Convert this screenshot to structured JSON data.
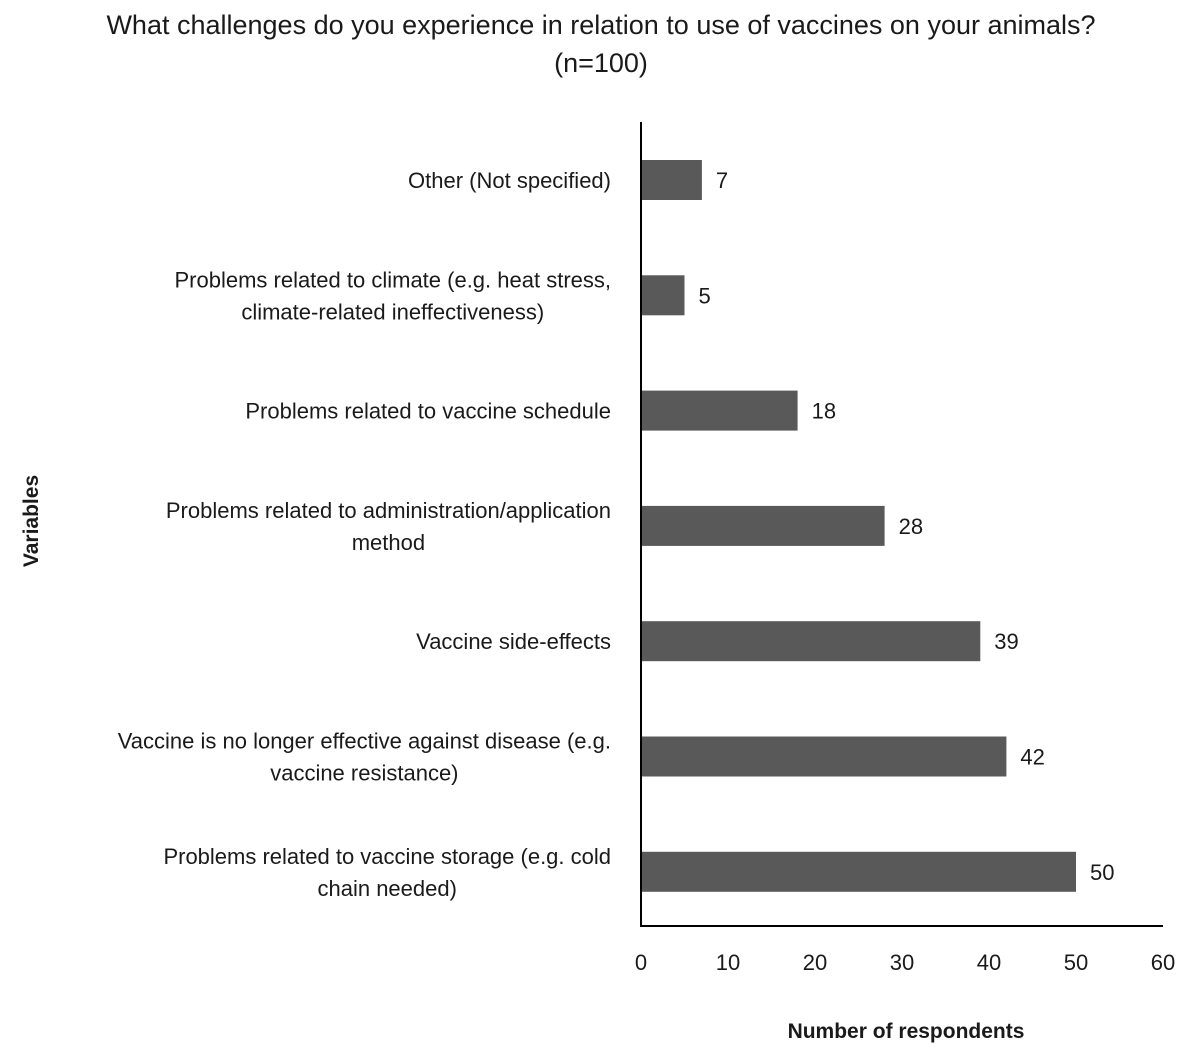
{
  "chart_data": {
    "type": "bar",
    "orientation": "horizontal",
    "title": "What challenges do you experience in relation to use of vaccines on your animals? (n=100)",
    "xlabel": "Number of respondents",
    "ylabel": "Variables",
    "xlim": [
      0,
      60
    ],
    "xticks": [
      0,
      10,
      20,
      30,
      40,
      50,
      60
    ],
    "grid": false,
    "legend": "none",
    "categories": [
      [
        "Other (Not specified)"
      ],
      [
        "Problems related to climate (e.g. heat stress,",
        "climate-related ineffectiveness)"
      ],
      [
        "Problems related to vaccine schedule"
      ],
      [
        "Problems related to administration/application",
        "method"
      ],
      [
        "Vaccine side-effects"
      ],
      [
        "Vaccine is no longer effective against disease (e.g.",
        "vaccine resistance)"
      ],
      [
        "Problems related to vaccine storage (e.g. cold",
        "chain needed)"
      ]
    ],
    "values": [
      7,
      5,
      18,
      28,
      39,
      42,
      50
    ],
    "bar_color": "#595959"
  }
}
